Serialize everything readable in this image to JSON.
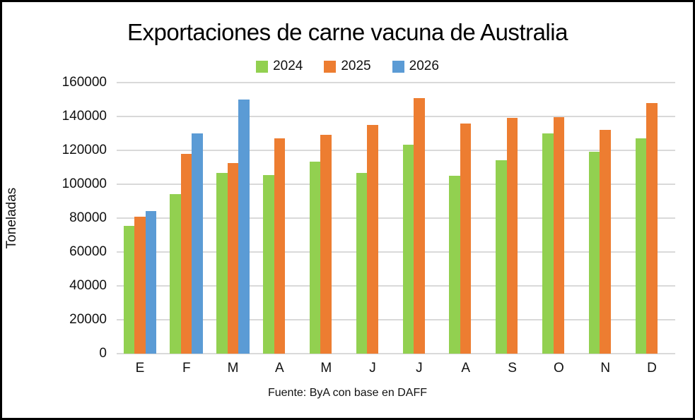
{
  "frame": {
    "background_color": "#ffffff",
    "border_color": "#000000"
  },
  "chart_data": {
    "type": "bar",
    "title": "Exportaciones de carne vacuna de Australia",
    "ylabel": "Toneladas",
    "xlabel": "",
    "footer": "Fuente: ByA con base en DAFF",
    "categories": [
      "E",
      "F",
      "M",
      "A",
      "M",
      "J",
      "J",
      "A",
      "S",
      "O",
      "N",
      "D"
    ],
    "series": [
      {
        "name": "2024",
        "color": "#92D050",
        "values": [
          75500,
          94000,
          106500,
          105500,
          113500,
          106500,
          123500,
          105000,
          114000,
          130000,
          119000,
          127000
        ]
      },
      {
        "name": "2025",
        "color": "#ED7D31",
        "values": [
          81000,
          118000,
          112500,
          127000,
          129000,
          135000,
          151000,
          136000,
          139000,
          139500,
          132000,
          148000
        ]
      },
      {
        "name": "2026",
        "color": "#5B9BD5",
        "values": [
          84000,
          130000,
          150000,
          null,
          null,
          null,
          null,
          null,
          null,
          null,
          null,
          null
        ]
      }
    ],
    "ylim": [
      0,
      160000
    ],
    "ytick_step": 20000,
    "grid": true,
    "gridline_color": "#D9D9D9",
    "legend_position": "top-center"
  }
}
